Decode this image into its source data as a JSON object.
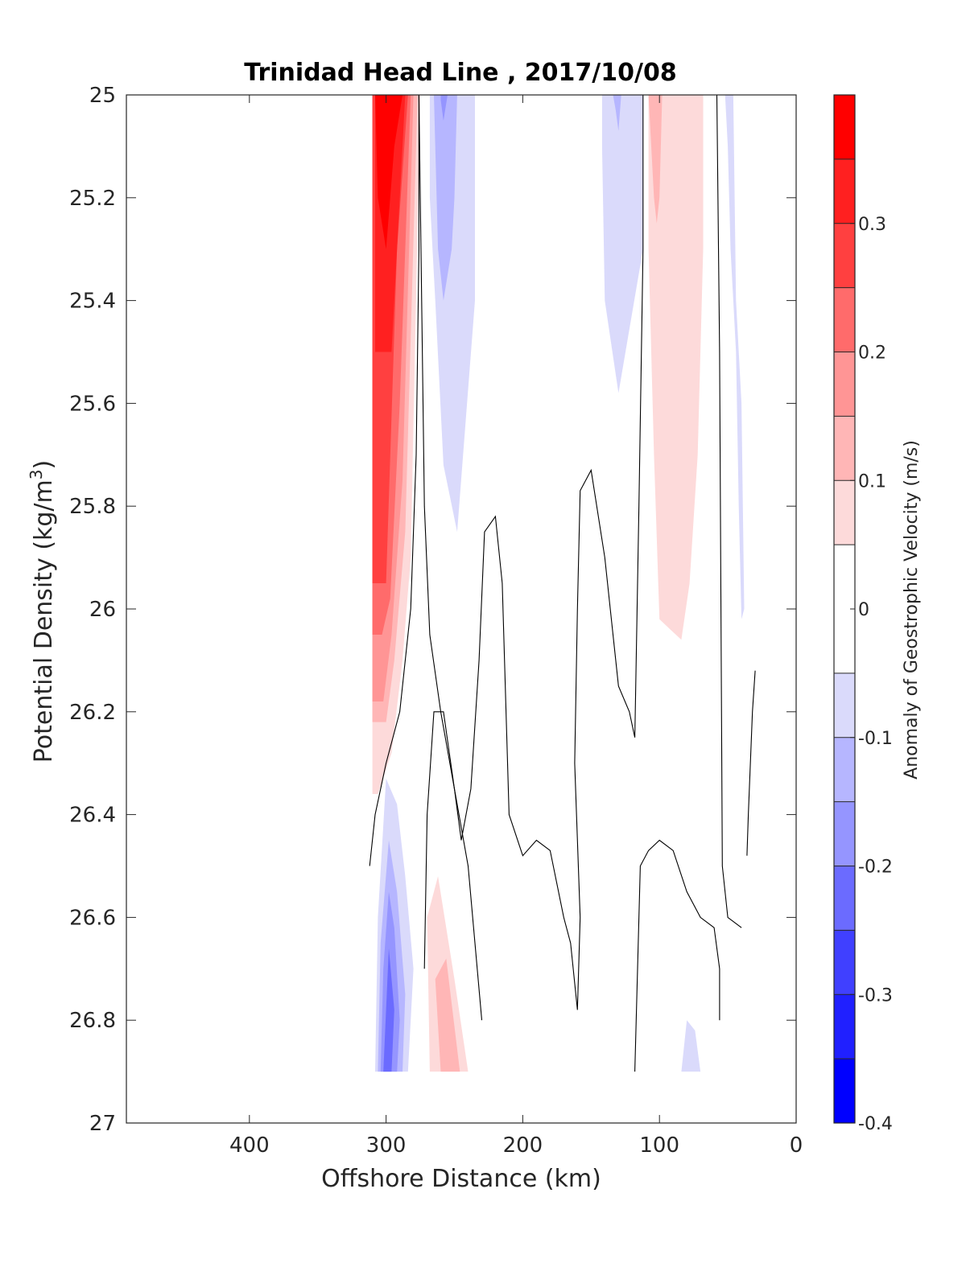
{
  "chart_data": {
    "type": "contourf",
    "title": "Trinidad Head Line , 2017/10/08",
    "xlabel": "Offshore Distance (km)",
    "ylabel": "Potential Density (kg/m",
    "ylabel_sup": "3",
    "ylabel_end": ")",
    "xlim": [
      490,
      0
    ],
    "ylim": [
      25,
      27
    ],
    "y_reversed": true,
    "x_reversed": true,
    "x_ticks": [
      "400",
      "300",
      "200",
      "100",
      "0"
    ],
    "y_ticks": [
      "25",
      "25.2",
      "25.4",
      "25.6",
      "25.8",
      "26",
      "26.2",
      "26.4",
      "26.6",
      "26.8",
      "27"
    ],
    "grid": false,
    "colorbar": {
      "label": "Anomaly of Geostrophic Velocity (m/s)",
      "range": [
        -0.4,
        0.4
      ],
      "tick_labels": [
        "0.3",
        "0.2",
        "0.1",
        "0",
        "-0.1",
        "-0.2",
        "-0.3",
        "-0.4"
      ],
      "levels": [
        {
          "lo": -0.4,
          "hi": -0.35,
          "color": "#0000ff"
        },
        {
          "lo": -0.35,
          "hi": -0.3,
          "color": "#2020ff"
        },
        {
          "lo": -0.3,
          "hi": -0.25,
          "color": "#4040ff"
        },
        {
          "lo": -0.25,
          "hi": -0.2,
          "color": "#6b6bff"
        },
        {
          "lo": -0.2,
          "hi": -0.15,
          "color": "#9595ff"
        },
        {
          "lo": -0.15,
          "hi": -0.1,
          "color": "#b6b6ff"
        },
        {
          "lo": -0.1,
          "hi": -0.05,
          "color": "#dadafb"
        },
        {
          "lo": -0.05,
          "hi": 0.05,
          "color": "#ffffff"
        },
        {
          "lo": 0.05,
          "hi": 0.1,
          "color": "#fddada"
        },
        {
          "lo": 0.1,
          "hi": 0.15,
          "color": "#ffb6b6"
        },
        {
          "lo": 0.15,
          "hi": 0.2,
          "color": "#ff9595"
        },
        {
          "lo": 0.2,
          "hi": 0.25,
          "color": "#ff6b6b"
        },
        {
          "lo": 0.25,
          "hi": 0.3,
          "color": "#ff4040"
        },
        {
          "lo": 0.3,
          "hi": 0.35,
          "color": "#ff2020"
        },
        {
          "lo": 0.35,
          "hi": 0.4,
          "color": "#ff0000"
        }
      ]
    },
    "filled_regions": [
      {
        "level": 0.075,
        "pts": [
          [
            310,
            25
          ],
          [
            275,
            25
          ],
          [
            282,
            25.9
          ],
          [
            288,
            26.1
          ],
          [
            296,
            26.28
          ],
          [
            306,
            26.36
          ],
          [
            310,
            26.36
          ]
        ]
      },
      {
        "level": 0.125,
        "pts": [
          [
            310,
            25
          ],
          [
            277,
            25
          ],
          [
            286,
            25.85
          ],
          [
            294,
            26.1
          ],
          [
            300,
            26.22
          ],
          [
            310,
            26.22
          ]
        ]
      },
      {
        "level": 0.175,
        "pts": [
          [
            310,
            25
          ],
          [
            280,
            25
          ],
          [
            288,
            25.75
          ],
          [
            296,
            26.05
          ],
          [
            302,
            26.18
          ],
          [
            310,
            26.18
          ]
        ]
      },
      {
        "level": 0.225,
        "pts": [
          [
            310,
            25
          ],
          [
            282,
            25
          ],
          [
            290,
            25.6
          ],
          [
            297,
            25.98
          ],
          [
            303,
            26.05
          ],
          [
            310,
            26.05
          ]
        ]
      },
      {
        "level": 0.275,
        "pts": [
          [
            310,
            25
          ],
          [
            284,
            25
          ],
          [
            292,
            25.3
          ],
          [
            300,
            25.95
          ],
          [
            310,
            25.95
          ]
        ]
      },
      {
        "level": 0.325,
        "pts": [
          [
            308,
            25
          ],
          [
            286,
            25
          ],
          [
            296,
            25.5
          ],
          [
            308,
            25.5
          ]
        ]
      },
      {
        "level": 0.375,
        "pts": [
          [
            308,
            25
          ],
          [
            288,
            25
          ],
          [
            294,
            25.1
          ],
          [
            300,
            25.3
          ],
          [
            306,
            25.2
          ]
        ]
      },
      {
        "level": -0.075,
        "pts": [
          [
            268,
            25
          ],
          [
            235,
            25
          ],
          [
            235,
            25.4
          ],
          [
            248,
            25.85
          ],
          [
            258,
            25.72
          ],
          [
            264,
            25.4
          ],
          [
            268,
            25.2
          ]
        ]
      },
      {
        "level": -0.125,
        "pts": [
          [
            265,
            25
          ],
          [
            248,
            25
          ],
          [
            250,
            25.2
          ],
          [
            252,
            25.3
          ],
          [
            258,
            25.4
          ],
          [
            262,
            25.3
          ],
          [
            264,
            25.1
          ]
        ]
      },
      {
        "level": -0.175,
        "pts": [
          [
            260,
            25
          ],
          [
            255,
            25
          ],
          [
            258,
            25.05
          ],
          [
            260,
            25.01
          ]
        ]
      },
      {
        "level": -0.075,
        "pts": [
          [
            142,
            25
          ],
          [
            112,
            25
          ],
          [
            112,
            25.3
          ],
          [
            130,
            25.58
          ],
          [
            140,
            25.4
          ],
          [
            142,
            25.1
          ]
        ]
      },
      {
        "level": -0.125,
        "pts": [
          [
            134,
            25
          ],
          [
            128,
            25
          ],
          [
            130,
            25.07
          ],
          [
            132,
            25.03
          ]
        ]
      },
      {
        "level": 0.075,
        "pts": [
          [
            108,
            25
          ],
          [
            68,
            25
          ],
          [
            68,
            25.3
          ],
          [
            72,
            25.7
          ],
          [
            78,
            25.95
          ],
          [
            84,
            26.06
          ],
          [
            92,
            26.04
          ],
          [
            100,
            26.02
          ],
          [
            104,
            25.7
          ],
          [
            108,
            25.3
          ]
        ]
      },
      {
        "level": 0.125,
        "pts": [
          [
            108,
            25
          ],
          [
            98,
            25
          ],
          [
            100,
            25.2
          ],
          [
            102,
            25.25
          ],
          [
            104,
            25.2
          ],
          [
            106,
            25.1
          ]
        ]
      },
      {
        "level": -0.075,
        "pts": [
          [
            52,
            25
          ],
          [
            46,
            25
          ],
          [
            44,
            25.4
          ],
          [
            40,
            25.6
          ],
          [
            38,
            26.0
          ],
          [
            40,
            26.02
          ],
          [
            42,
            25.8
          ],
          [
            44,
            25.5
          ],
          [
            48,
            25.3
          ],
          [
            50,
            25.1
          ]
        ]
      },
      {
        "level": -0.075,
        "pts": [
          [
            308,
            26.9
          ],
          [
            284,
            26.9
          ],
          [
            280,
            26.7
          ],
          [
            286,
            26.52
          ],
          [
            292,
            26.38
          ],
          [
            300,
            26.33
          ],
          [
            306,
            26.6
          ]
        ]
      },
      {
        "level": -0.125,
        "pts": [
          [
            306,
            26.9
          ],
          [
            288,
            26.9
          ],
          [
            286,
            26.75
          ],
          [
            292,
            26.55
          ],
          [
            298,
            26.45
          ],
          [
            304,
            26.65
          ]
        ]
      },
      {
        "level": -0.175,
        "pts": [
          [
            304,
            26.9
          ],
          [
            292,
            26.9
          ],
          [
            290,
            26.8
          ],
          [
            294,
            26.62
          ],
          [
            298,
            26.55
          ],
          [
            302,
            26.7
          ]
        ]
      },
      {
        "level": -0.225,
        "pts": [
          [
            302,
            26.9
          ],
          [
            296,
            26.9
          ],
          [
            294,
            26.78
          ],
          [
            298,
            26.66
          ],
          [
            300,
            26.78
          ]
        ]
      },
      {
        "level": 0.075,
        "pts": [
          [
            270,
            26.6
          ],
          [
            262,
            26.52
          ],
          [
            250,
            26.72
          ],
          [
            240,
            26.9
          ],
          [
            268,
            26.9
          ]
        ]
      },
      {
        "level": 0.125,
        "pts": [
          [
            264,
            26.72
          ],
          [
            256,
            26.68
          ],
          [
            246,
            26.9
          ],
          [
            260,
            26.9
          ]
        ]
      },
      {
        "level": -0.075,
        "pts": [
          [
            84,
            26.9
          ],
          [
            70,
            26.9
          ],
          [
            74,
            26.82
          ],
          [
            80,
            26.8
          ]
        ]
      }
    ],
    "zero_contours": [
      [
        [
          276,
          25
        ],
        [
          272,
          25.8
        ],
        [
          268,
          26.05
        ],
        [
          260,
          26.2
        ],
        [
          250,
          26.35
        ],
        [
          240,
          26.5
        ],
        [
          230,
          26.8
        ]
      ],
      [
        [
          312,
          26.5
        ],
        [
          308,
          26.4
        ],
        [
          300,
          26.3
        ],
        [
          290,
          26.2
        ],
        [
          282,
          26.0
        ],
        [
          278,
          25.7
        ],
        [
          276,
          25.3
        ],
        [
          276,
          25
        ]
      ],
      [
        [
          272,
          26.7
        ],
        [
          270,
          26.4
        ],
        [
          265,
          26.2
        ],
        [
          258,
          26.2
        ],
        [
          250,
          26.35
        ],
        [
          245,
          26.45
        ],
        [
          238,
          26.35
        ],
        [
          232,
          26.1
        ],
        [
          228,
          25.85
        ],
        [
          220,
          25.82
        ],
        [
          215,
          25.95
        ],
        [
          210,
          26.4
        ],
        [
          200,
          26.48
        ],
        [
          190,
          26.45
        ],
        [
          180,
          26.47
        ],
        [
          170,
          26.6
        ],
        [
          165,
          26.65
        ],
        [
          160,
          26.78
        ],
        [
          158,
          26.6
        ],
        [
          162,
          26.3
        ],
        [
          160,
          26.0
        ],
        [
          158,
          25.77
        ],
        [
          150,
          25.73
        ],
        [
          140,
          25.9
        ],
        [
          130,
          26.15
        ],
        [
          122,
          26.2
        ],
        [
          118,
          26.25
        ],
        [
          115,
          25.8
        ],
        [
          112,
          25.3
        ],
        [
          112,
          25
        ]
      ],
      [
        [
          118,
          26.9
        ],
        [
          114,
          26.5
        ],
        [
          108,
          26.47
        ],
        [
          100,
          26.45
        ],
        [
          90,
          26.47
        ],
        [
          80,
          26.55
        ],
        [
          70,
          26.6
        ],
        [
          60,
          26.62
        ],
        [
          56,
          26.7
        ],
        [
          56,
          26.8
        ]
      ],
      [
        [
          58,
          25
        ],
        [
          56,
          25.5
        ],
        [
          54,
          26.5
        ],
        [
          50,
          26.6
        ],
        [
          40,
          26.62
        ]
      ],
      [
        [
          36,
          26.48
        ],
        [
          35,
          26.4
        ],
        [
          32,
          26.2
        ],
        [
          30,
          26.12
        ]
      ]
    ]
  }
}
